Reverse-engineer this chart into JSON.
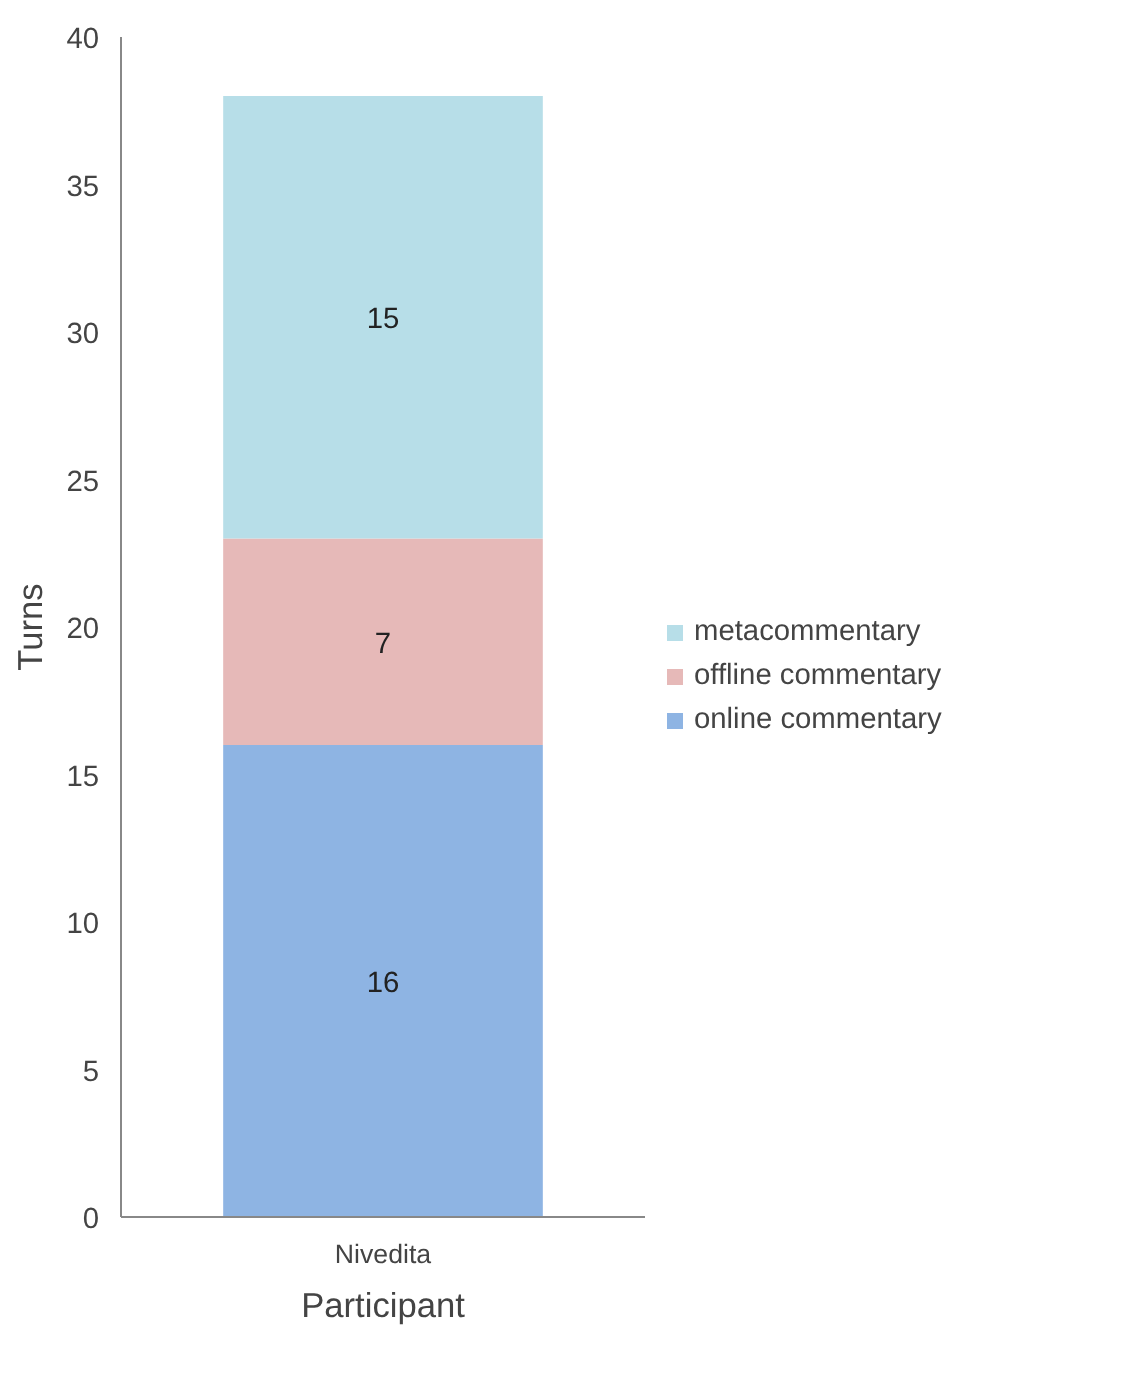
{
  "chart_data": {
    "type": "bar",
    "stacked": true,
    "categories": [
      "Nivedita"
    ],
    "xlabel": "Participant",
    "ylabel": "Turns",
    "series": [
      {
        "name": "online commentary",
        "color": "#8eb4e3",
        "values": [
          16
        ]
      },
      {
        "name": "offline commentary",
        "color": "#e6b9b8",
        "values": [
          7
        ]
      },
      {
        "name": "metacommentary",
        "color": "#b7dee8",
        "values": [
          15
        ]
      }
    ],
    "ylim": [
      0,
      40
    ],
    "yticks": [
      0,
      5,
      10,
      15,
      20,
      25,
      30,
      35,
      40
    ],
    "data_labels": true,
    "legend": "right",
    "grid": false
  }
}
